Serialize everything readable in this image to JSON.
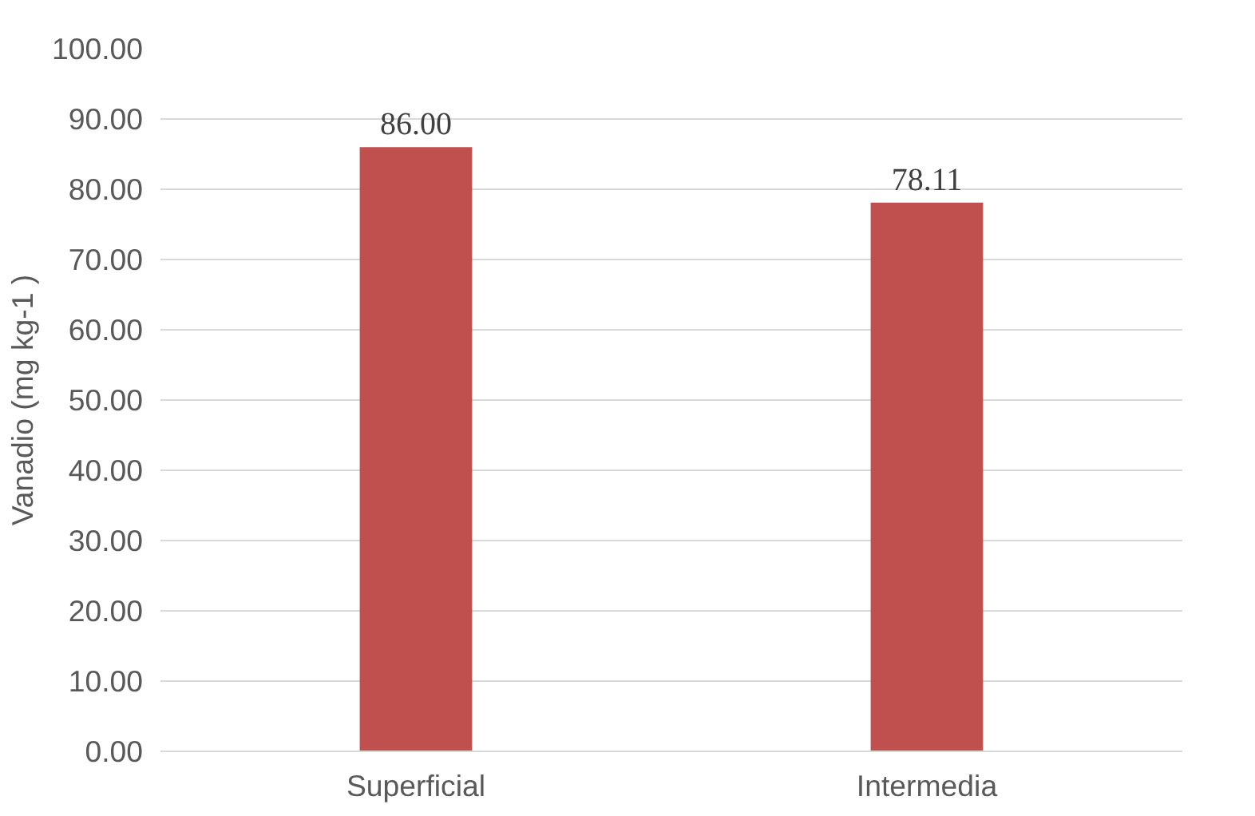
{
  "chart_data": {
    "type": "bar",
    "ylabel": "Vanadio (mg kg-1 )",
    "categories": [
      "Superficial",
      "Intermedia"
    ],
    "values": [
      86.0,
      78.11
    ],
    "color": "#c0504d",
    "value_labels": [
      "86.00",
      "78.11"
    ],
    "ylim": [
      0,
      100
    ],
    "yticks": [
      {
        "value": 0,
        "label": "0.00"
      },
      {
        "value": 10,
        "label": "10.00"
      },
      {
        "value": 20,
        "label": "20.00"
      },
      {
        "value": 30,
        "label": "30.00"
      },
      {
        "value": 40,
        "label": "40.00"
      },
      {
        "value": 50,
        "label": "50.00"
      },
      {
        "value": 60,
        "label": "60.00"
      },
      {
        "value": 70,
        "label": "70.00"
      },
      {
        "value": 80,
        "label": "80.00"
      },
      {
        "value": 90,
        "label": "90.00"
      },
      {
        "value": 100,
        "label": "100.00"
      }
    ],
    "grid": "y"
  }
}
